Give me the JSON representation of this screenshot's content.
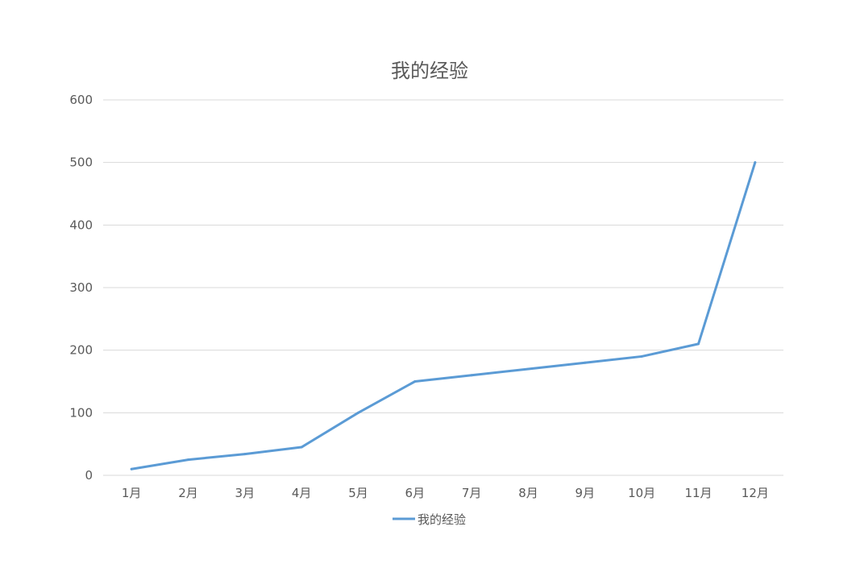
{
  "chart_data": {
    "type": "line",
    "title": "我的经验",
    "xlabel": "",
    "ylabel": "",
    "categories": [
      "1月",
      "2月",
      "3月",
      "4月",
      "5月",
      "6月",
      "7月",
      "8月",
      "9月",
      "10月",
      "11月",
      "12月"
    ],
    "series": [
      {
        "name": "我的经验",
        "color": "#5b9bd5",
        "values": [
          10,
          25,
          34,
          45,
          100,
          150,
          160,
          170,
          180,
          190,
          210,
          500
        ]
      }
    ],
    "ylim": [
      0,
      600
    ],
    "yticks": [
      0,
      100,
      200,
      300,
      400,
      500,
      600
    ],
    "grid": true,
    "legend": "bottom"
  }
}
